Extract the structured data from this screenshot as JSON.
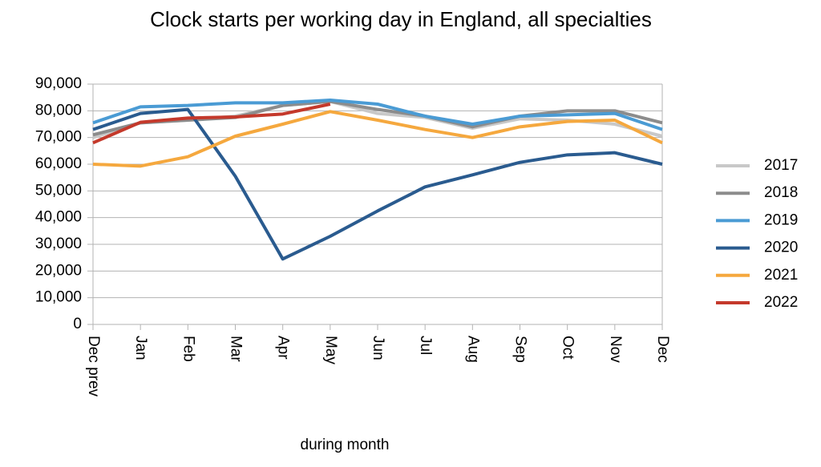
{
  "chart_data": {
    "type": "line",
    "title": "Clock starts per working day in England, all specialties",
    "x_label": "during  month",
    "categories": [
      "Dec prev",
      "Jan",
      "Feb",
      "Mar",
      "Apr",
      "May",
      "Jun",
      "Jul",
      "Aug",
      "Sep",
      "Oct",
      "Nov",
      "Dec"
    ],
    "series": [
      {
        "name": "2017",
        "color": "#c8c8c8",
        "values": [
          70000,
          75500,
          76500,
          78000,
          82000,
          83500,
          79000,
          77500,
          73500,
          77000,
          76500,
          75000,
          70500
        ]
      },
      {
        "name": "2018",
        "color": "#8c8c8c",
        "values": [
          71000,
          75500,
          76500,
          77500,
          82000,
          83500,
          80500,
          78000,
          74000,
          78000,
          80000,
          80000,
          75500
        ]
      },
      {
        "name": "2019",
        "color": "#4a9bd4",
        "values": [
          75500,
          81500,
          82000,
          83000,
          83000,
          84000,
          82500,
          78000,
          75000,
          78000,
          78500,
          79000,
          73000
        ]
      },
      {
        "name": "2020",
        "color": "#2a5b8f",
        "values": [
          73000,
          79000,
          80500,
          55500,
          24500,
          33000,
          42500,
          51500,
          56000,
          60700,
          63500,
          64300,
          60000
        ]
      },
      {
        "name": "2021",
        "color": "#f5a83e",
        "values": [
          60000,
          59300,
          62800,
          70500,
          75000,
          79700,
          76500,
          73000,
          70000,
          74000,
          76000,
          76500,
          68000
        ]
      },
      {
        "name": "2022",
        "color": "#c4392b",
        "values": [
          68000,
          75700,
          77300,
          77700,
          78800,
          82500,
          null,
          null,
          null,
          null,
          null,
          null,
          null
        ]
      }
    ],
    "ylim": [
      0,
      90000
    ],
    "yticks": [
      0,
      {
        "value": 10000,
        "label": "10,000"
      },
      {
        "value": 20000,
        "label": "20,000"
      },
      {
        "value": 30000,
        "label": "30,000"
      },
      {
        "value": 40000,
        "label": "40,000"
      },
      {
        "value": 50000,
        "label": "50,000"
      },
      {
        "value": 60000,
        "label": "60,000"
      },
      {
        "value": 70000,
        "label": "70,000"
      },
      {
        "value": 80000,
        "label": "80,000"
      },
      {
        "value": 90000,
        "label": "90,000"
      }
    ],
    "grid": true,
    "legend": "right"
  }
}
